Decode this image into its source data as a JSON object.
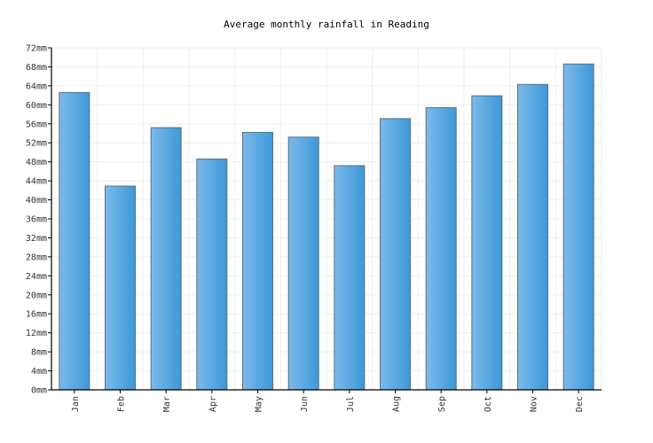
{
  "chart_data": {
    "type": "bar",
    "title": "Average monthly rainfall in Reading",
    "categories": [
      "Jan",
      "Feb",
      "Mar",
      "Apr",
      "May",
      "Jun",
      "Jul",
      "Aug",
      "Sep",
      "Oct",
      "Nov",
      "Dec"
    ],
    "values": [
      62.6,
      42.9,
      55.2,
      48.6,
      54.2,
      53.2,
      47.2,
      57.1,
      59.4,
      61.9,
      64.3,
      68.6
    ],
    "ylim": [
      0,
      72
    ],
    "y_ticks": [
      "0mm",
      "4mm",
      "8mm",
      "12mm",
      "16mm",
      "20mm",
      "24mm",
      "28mm",
      "32mm",
      "36mm",
      "40mm",
      "44mm",
      "48mm",
      "52mm",
      "56mm",
      "60mm",
      "64mm",
      "68mm",
      "72mm"
    ],
    "grid": true,
    "colors": {
      "bar_light": "#7db9ea",
      "bar_dark": "#3c99d8",
      "bar_border": "#5a6f80",
      "grid": "#eeeeee",
      "axis": "#000000"
    }
  }
}
